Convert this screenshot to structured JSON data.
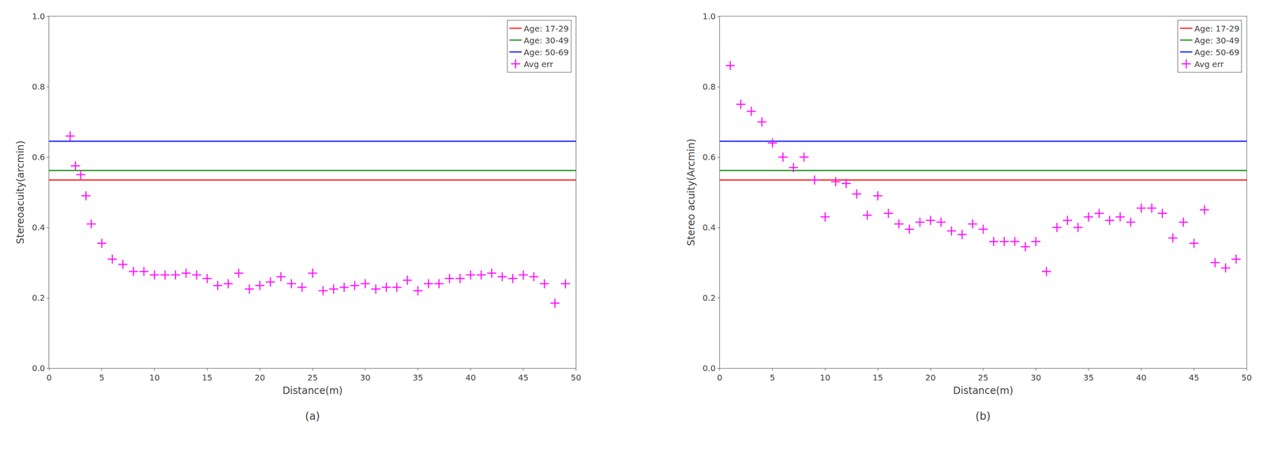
{
  "chart_data": [
    {
      "type": "scatter",
      "title": "(a)",
      "xlabel": "Distance(m)",
      "ylabel": "Stereoacuity(arcmin)",
      "xlim": [
        0,
        50
      ],
      "xticks": [
        0,
        5,
        10,
        15,
        20,
        25,
        30,
        35,
        40,
        45,
        50
      ],
      "ylim": [
        0,
        1
      ],
      "yticks": [
        {
          "value": 0,
          "label": "0.0"
        },
        0.2,
        0.4,
        0.6,
        0.8,
        {
          "value": 1,
          "label": "1.0"
        }
      ],
      "grid": false,
      "legend": "upper right",
      "series": [
        {
          "name": "Age: 17-29",
          "type": "hline",
          "color": "red",
          "values": [
            0.535
          ]
        },
        {
          "name": "Age: 30-49",
          "type": "hline",
          "color": "green",
          "values": [
            0.562
          ]
        },
        {
          "name": "Age: 50-69",
          "type": "hline",
          "color": "blue",
          "values": [
            0.645
          ]
        },
        {
          "name": "Avg err",
          "type": "scatter",
          "color": "magenta",
          "marker": "+",
          "x": [
            2,
            2.5,
            3,
            3.5,
            4,
            5,
            6,
            7,
            8,
            9,
            10,
            11,
            12,
            13,
            14,
            15,
            16,
            17,
            18,
            19,
            20,
            21,
            22,
            23,
            24,
            25,
            26,
            27,
            28,
            29,
            30,
            31,
            32,
            33,
            34,
            35,
            36,
            37,
            38,
            39,
            40,
            41,
            42,
            43,
            44,
            45,
            46,
            47,
            48,
            49
          ],
          "values": [
            0.66,
            0.575,
            0.55,
            0.49,
            0.41,
            0.355,
            0.31,
            0.295,
            0.275,
            0.275,
            0.265,
            0.265,
            0.265,
            0.27,
            0.265,
            0.255,
            0.235,
            0.24,
            0.27,
            0.225,
            0.235,
            0.245,
            0.26,
            0.24,
            0.23,
            0.27,
            0.22,
            0.225,
            0.23,
            0.235,
            0.24,
            0.225,
            0.23,
            0.23,
            0.25,
            0.22,
            0.24,
            0.24,
            0.255,
            0.255,
            0.265,
            0.265,
            0.27,
            0.26,
            0.255,
            0.265,
            0.26,
            0.24,
            0.185,
            0.24
          ]
        }
      ]
    },
    {
      "type": "scatter",
      "title": "(b)",
      "xlabel": "Distance(m)",
      "ylabel": "Stereo acuity(Arcmin)",
      "xlim": [
        0,
        50
      ],
      "xticks": [
        0,
        5,
        10,
        15,
        20,
        25,
        30,
        35,
        40,
        45,
        50
      ],
      "ylim": [
        0,
        1
      ],
      "yticks": [
        {
          "value": 0,
          "label": "0.0"
        },
        0.2,
        0.4,
        0.6,
        0.8,
        {
          "value": 1,
          "label": "1.0"
        }
      ],
      "grid": false,
      "legend": "upper right",
      "series": [
        {
          "name": "Age: 17-29",
          "type": "hline",
          "color": "red",
          "values": [
            0.535
          ]
        },
        {
          "name": "Age: 30-49",
          "type": "hline",
          "color": "green",
          "values": [
            0.562
          ]
        },
        {
          "name": "Age: 50-69",
          "type": "hline",
          "color": "blue",
          "values": [
            0.645
          ]
        },
        {
          "name": "Avg err",
          "type": "scatter",
          "color": "magenta",
          "marker": "+",
          "x": [
            1,
            2,
            3,
            4,
            5,
            6,
            7,
            8,
            9,
            10,
            11,
            12,
            13,
            14,
            15,
            16,
            17,
            18,
            19,
            20,
            21,
            22,
            23,
            24,
            25,
            26,
            27,
            28,
            29,
            30,
            31,
            32,
            33,
            34,
            35,
            36,
            37,
            38,
            39,
            40,
            41,
            42,
            43,
            44,
            45,
            46,
            47,
            48,
            49
          ],
          "values": [
            0.86,
            0.75,
            0.73,
            0.7,
            0.64,
            0.6,
            0.57,
            0.6,
            0.535,
            0.43,
            0.53,
            0.525,
            0.495,
            0.435,
            0.49,
            0.44,
            0.41,
            0.395,
            0.415,
            0.42,
            0.415,
            0.39,
            0.38,
            0.41,
            0.395,
            0.36,
            0.36,
            0.36,
            0.345,
            0.36,
            0.275,
            0.4,
            0.42,
            0.4,
            0.43,
            0.44,
            0.42,
            0.43,
            0.415,
            0.455,
            0.455,
            0.44,
            0.37,
            0.415,
            0.355,
            0.45,
            0.3,
            0.285,
            0.31
          ]
        }
      ]
    }
  ]
}
